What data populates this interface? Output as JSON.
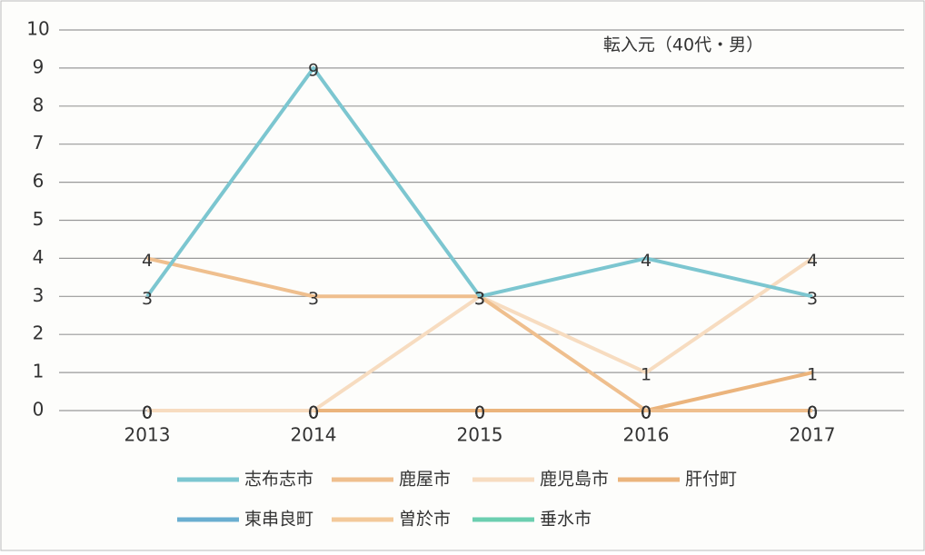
{
  "chart_data": {
    "type": "line",
    "title": "転入元（40代・男）",
    "categories": [
      "2013",
      "2014",
      "2015",
      "2016",
      "2017"
    ],
    "series": [
      {
        "name": "志布志市",
        "color": "#7cc6d0",
        "values": [
          3,
          9,
          3,
          4,
          3
        ]
      },
      {
        "name": "鹿屋市",
        "color": "#efbf8e",
        "values": [
          4,
          3,
          3,
          0,
          0
        ]
      },
      {
        "name": "鹿児島市",
        "color": "#f7dcc0",
        "values": [
          0,
          0,
          3,
          1,
          4
        ]
      },
      {
        "name": "肝付町",
        "color": "#ebb47c",
        "values": [
          0,
          0,
          0,
          0,
          1
        ]
      },
      {
        "name": "東串良町",
        "color": "#6aaed0",
        "values": [
          0,
          0,
          0,
          0,
          0
        ]
      },
      {
        "name": "曽於市",
        "color": "#f3c99a",
        "values": [
          0,
          0,
          0,
          0,
          0
        ]
      },
      {
        "name": "垂水市",
        "color": "#6ccfb0",
        "values": [
          0,
          0,
          0,
          0,
          0
        ]
      }
    ],
    "ylim": [
      0,
      10
    ],
    "yticks": [
      0,
      1,
      2,
      3,
      4,
      5,
      6,
      7,
      8,
      9,
      10
    ],
    "grid": true
  }
}
